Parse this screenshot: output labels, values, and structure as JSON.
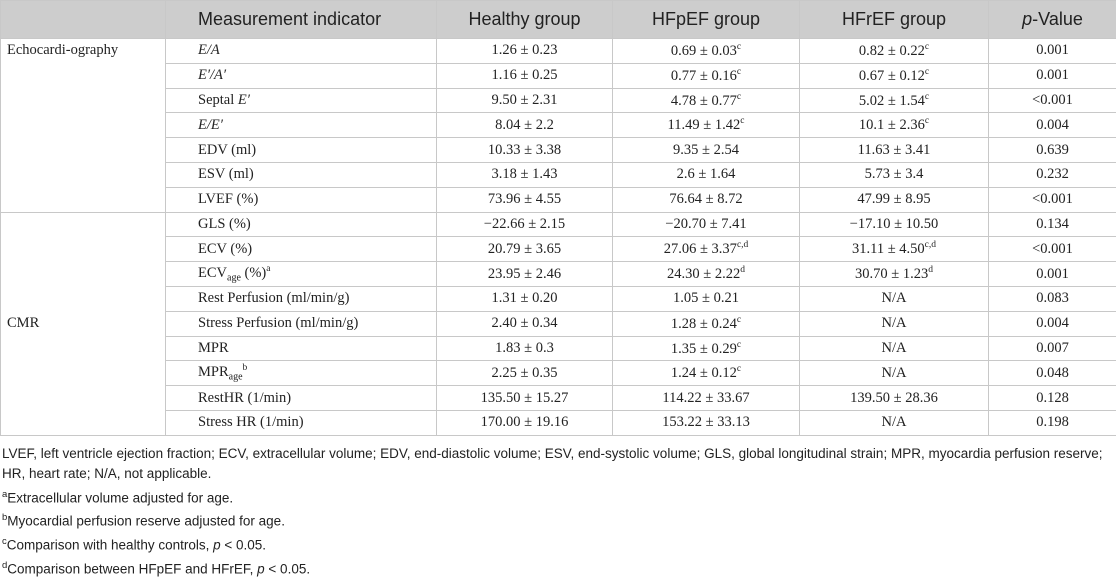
{
  "table": {
    "header": [
      [
        "Measurement indicator"
      ],
      [
        "Healthy group"
      ],
      [
        "HFpEF group"
      ],
      [
        "HFrEF group"
      ],
      [
        {
          "text": "p",
          "style": "italic"
        },
        "-Value"
      ]
    ],
    "groups": [
      {
        "label": "Echocardi-ography",
        "rows": [
          [
            [
              {
                "text": "E/A",
                "style": "italic"
              }
            ],
            [
              "1.26 ± 0.23"
            ],
            [
              "0.69 ± 0.03",
              {
                "text": "c",
                "style": "sup"
              }
            ],
            [
              "0.82 ± 0.22",
              {
                "text": "c",
                "style": "sup"
              }
            ],
            [
              "0.001"
            ]
          ],
          [
            [
              {
                "text": "E′/A′",
                "style": "italic"
              }
            ],
            [
              "1.16 ± 0.25"
            ],
            [
              "0.77 ± 0.16",
              {
                "text": "c",
                "style": "sup"
              }
            ],
            [
              "0.67 ± 0.12",
              {
                "text": "c",
                "style": "sup"
              }
            ],
            [
              "0.001"
            ]
          ],
          [
            [
              "Septal ",
              {
                "text": "E′",
                "style": "italic"
              }
            ],
            [
              "9.50 ± 2.31"
            ],
            [
              "4.78 ± 0.77",
              {
                "text": "c",
                "style": "sup"
              }
            ],
            [
              "5.02 ± 1.54",
              {
                "text": "c",
                "style": "sup"
              }
            ],
            [
              "<0.001"
            ]
          ],
          [
            [
              {
                "text": "E/E′",
                "style": "italic"
              }
            ],
            [
              "8.04 ± 2.2"
            ],
            [
              "11.49 ± 1.42",
              {
                "text": "c",
                "style": "sup"
              }
            ],
            [
              "10.1 ± 2.36",
              {
                "text": "c",
                "style": "sup"
              }
            ],
            [
              "0.004"
            ]
          ],
          [
            [
              "EDV (ml)"
            ],
            [
              "10.33 ± 3.38"
            ],
            [
              "9.35 ± 2.54"
            ],
            [
              "11.63 ± 3.41"
            ],
            [
              "0.639"
            ]
          ],
          [
            [
              "ESV (ml)"
            ],
            [
              "3.18 ± 1.43"
            ],
            [
              "2.6 ± 1.64"
            ],
            [
              "5.73 ± 3.4"
            ],
            [
              "0.232"
            ]
          ],
          [
            [
              "LVEF (%)"
            ],
            [
              "73.96 ± 4.55"
            ],
            [
              "76.64 ± 8.72"
            ],
            [
              "47.99 ± 8.95"
            ],
            [
              "<0.001"
            ]
          ]
        ]
      },
      {
        "label": "CMR",
        "rows": [
          [
            [
              "GLS (%)"
            ],
            [
              "−22.66 ± 2.15"
            ],
            [
              "−20.70 ± 7.41"
            ],
            [
              "−17.10 ± 10.50"
            ],
            [
              "0.134"
            ]
          ],
          [
            [
              "ECV (%)"
            ],
            [
              "20.79 ± 3.65"
            ],
            [
              "27.06 ± 3.37",
              {
                "text": "c,d",
                "style": "sup"
              }
            ],
            [
              "31.11 ± 4.50",
              {
                "text": "c,d",
                "style": "sup"
              }
            ],
            [
              "<0.001"
            ]
          ],
          [
            [
              "ECV",
              {
                "text": "age",
                "style": "sub"
              },
              " (%)",
              {
                "text": "a",
                "style": "sup"
              }
            ],
            [
              "23.95 ± 2.46"
            ],
            [
              "24.30 ± 2.22",
              {
                "text": "d",
                "style": "sup"
              }
            ],
            [
              "30.70 ± 1.23",
              {
                "text": "d",
                "style": "sup"
              }
            ],
            [
              "0.001"
            ]
          ],
          [
            [
              "Rest Perfusion (ml/min/g)"
            ],
            [
              "1.31 ± 0.20"
            ],
            [
              "1.05 ± 0.21"
            ],
            [
              "N/A"
            ],
            [
              "0.083"
            ]
          ],
          [
            [
              "Stress Perfusion (ml/min/g)"
            ],
            [
              "2.40 ± 0.34"
            ],
            [
              "1.28 ± 0.24",
              {
                "text": "c",
                "style": "sup"
              }
            ],
            [
              "N/A"
            ],
            [
              "0.004"
            ]
          ],
          [
            [
              "MPR"
            ],
            [
              "1.83 ± 0.3"
            ],
            [
              "1.35 ± 0.29",
              {
                "text": "c",
                "style": "sup"
              }
            ],
            [
              "N/A"
            ],
            [
              "0.007"
            ]
          ],
          [
            [
              "MPR",
              {
                "text": "age",
                "style": "sub"
              },
              {
                "text": "b",
                "style": "sup"
              }
            ],
            [
              "2.25 ± 0.35"
            ],
            [
              "1.24 ± 0.12",
              {
                "text": "c",
                "style": "sup"
              }
            ],
            [
              "N/A"
            ],
            [
              "0.048"
            ]
          ],
          [
            [
              "RestHR (1/min)"
            ],
            [
              "135.50 ± 15.27"
            ],
            [
              "114.22 ± 33.67"
            ],
            [
              "139.50 ± 28.36"
            ],
            [
              "0.128"
            ]
          ],
          [
            [
              "Stress HR (1/min)"
            ],
            [
              "170.00 ± 19.16"
            ],
            [
              "153.22 ± 33.13"
            ],
            [
              "N/A"
            ],
            [
              "0.198"
            ]
          ]
        ]
      }
    ]
  },
  "footnotes": [
    [
      "LVEF, left ventricle ejection fraction; ECV, extracellular volume; EDV, end-diastolic volume; ESV, end-systolic volume; GLS, global longitudinal strain; MPR, myocardia perfusion reserve; HR, heart rate; N/A, not applicable."
    ],
    [
      {
        "text": "a",
        "style": "sup"
      },
      "Extracellular volume adjusted for age."
    ],
    [
      {
        "text": "b",
        "style": "sup"
      },
      "Myocardial perfusion reserve adjusted for age."
    ],
    [
      {
        "text": "c",
        "style": "sup"
      },
      "Comparison with healthy controls, ",
      {
        "text": "p",
        "style": "italic"
      },
      " < 0.05."
    ],
    [
      {
        "text": "d",
        "style": "sup"
      },
      "Comparison between HFpEF and HFrEF, ",
      {
        "text": "p",
        "style": "italic"
      },
      " < 0.05."
    ]
  ]
}
